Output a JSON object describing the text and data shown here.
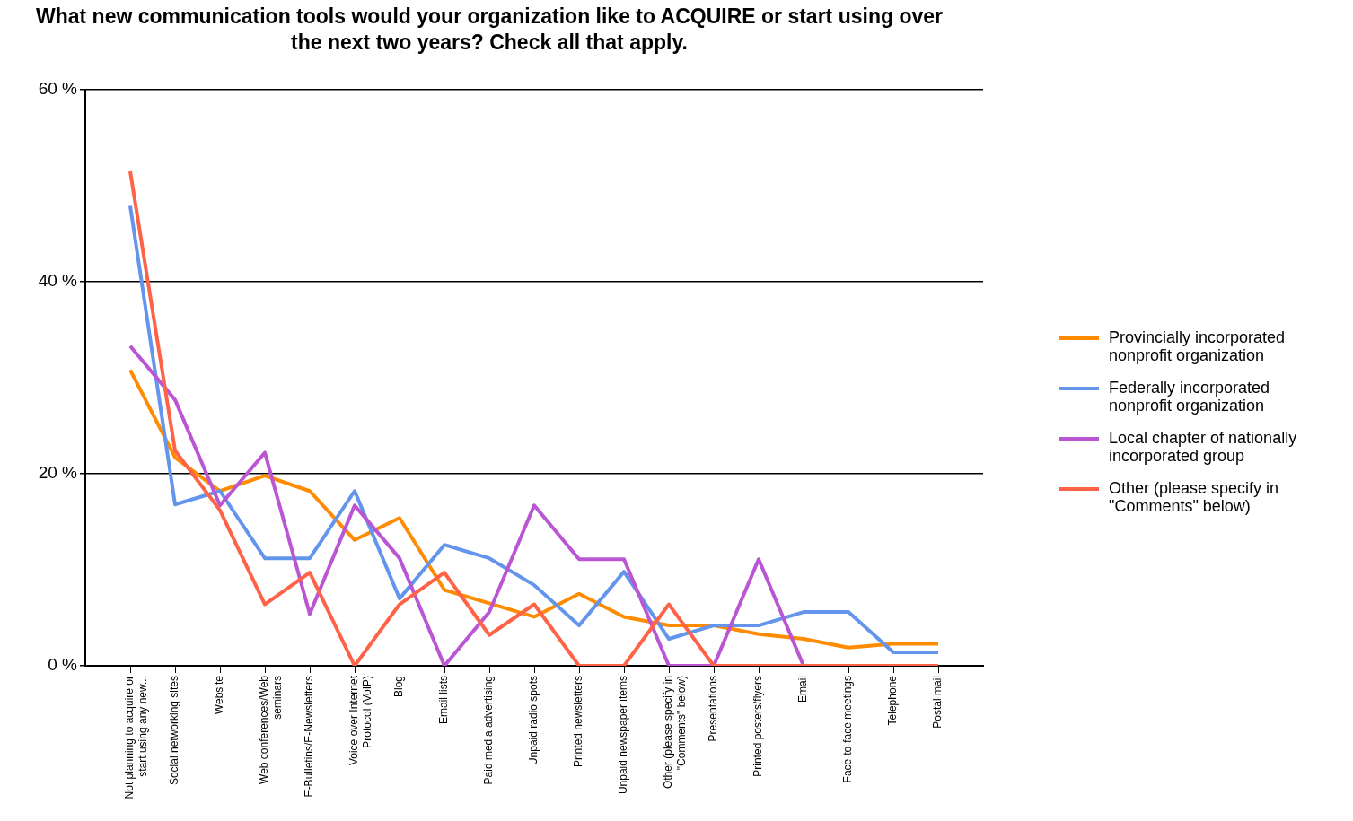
{
  "chart_data": {
    "type": "line",
    "title": "What new communication tools would your organization like to ACQUIRE or start using over the next two years? Check all that apply.",
    "categories": [
      "Not planning to acquire or start using any new...",
      "Social networking sites",
      "Website",
      "Web conferences/Web seminars",
      "E-Bulletins/E-Newsletters",
      "Voice over Internet Protocol (VoIP)",
      "Blog",
      "Email lists",
      "Paid media advertising",
      "Unpaid radio spots",
      "Printed newsletters",
      "Unpaid newspaper items",
      "Other (please specify in \"Comments\" below)",
      "Presentations",
      "Printed posters/flyers",
      "Email",
      "Face-to-face meetings",
      "Telephone",
      "Postal mail"
    ],
    "series": [
      {
        "name": "Provincially incorporated nonprofit organization",
        "color": "#ff8c00",
        "values": [
          30.8,
          21.7,
          18.2,
          19.8,
          18.2,
          13.1,
          15.4,
          7.9,
          6.5,
          5.1,
          7.5,
          5.1,
          4.2,
          4.2,
          3.3,
          2.8,
          1.9,
          2.3,
          2.3
        ]
      },
      {
        "name": "Federally incorporated nonprofit organization",
        "color": "#6495ed",
        "values": [
          47.9,
          16.8,
          18.2,
          11.2,
          11.2,
          18.2,
          7.0,
          12.6,
          11.2,
          8.4,
          4.2,
          9.8,
          2.8,
          4.2,
          4.2,
          5.6,
          5.6,
          1.4,
          1.4
        ]
      },
      {
        "name": "Local chapter of nationally incorporated group",
        "color": "#ba55d3",
        "values": [
          33.3,
          27.7,
          16.7,
          22.2,
          5.4,
          16.7,
          11.2,
          0,
          5.6,
          16.7,
          11.1,
          11.1,
          0,
          0,
          11.1,
          0,
          0,
          null,
          null
        ]
      },
      {
        "name": "Other (please specify in \"Comments\" below)",
        "color": "#ff6347",
        "values": [
          51.5,
          22.4,
          16.2,
          6.4,
          9.7,
          0,
          6.4,
          9.7,
          3.2,
          6.4,
          0,
          0,
          6.4,
          0,
          0,
          0,
          0,
          0,
          0
        ]
      }
    ],
    "ylim": [
      0,
      60
    ],
    "yticks": [
      {
        "value": 0,
        "label": "0 %"
      },
      {
        "value": 20,
        "label": "20 %"
      },
      {
        "value": 40,
        "label": "40 %"
      },
      {
        "value": 60,
        "label": "60 %"
      }
    ],
    "grid": "y",
    "legend": "right",
    "marker": "none",
    "line_style": "solid"
  }
}
